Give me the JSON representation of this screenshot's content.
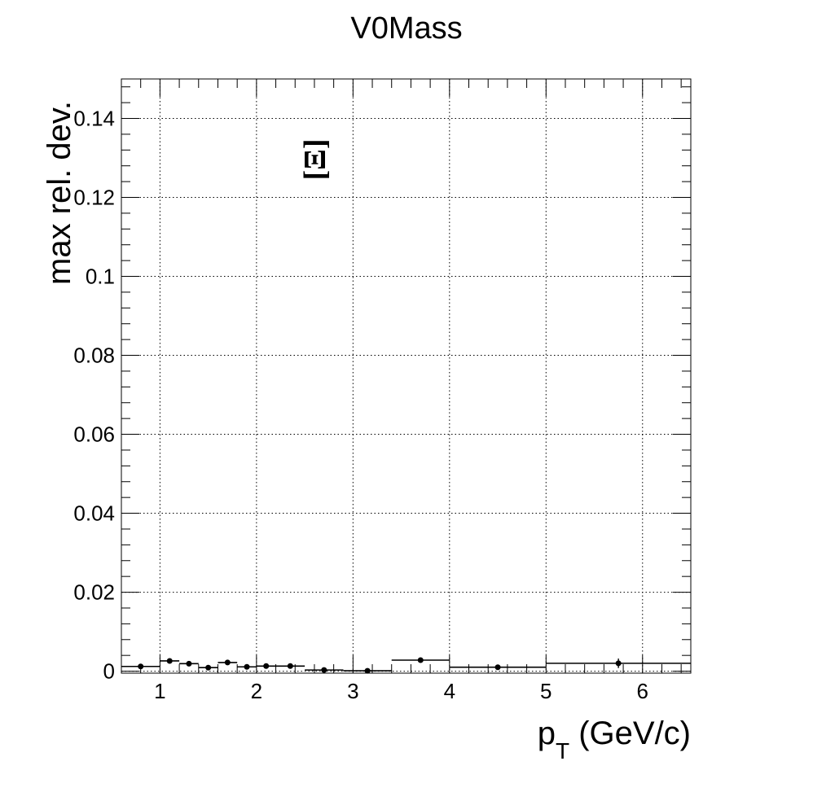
{
  "chart_data": {
    "type": "scatter",
    "title": "V0Mass",
    "xlabel_main": "p",
    "xlabel_sub": "T",
    "xlabel_rest": " (GeV/c)",
    "ylabel": "max rel. dev.",
    "annotation": "[Ξ]",
    "xlim": [
      0.6,
      6.5
    ],
    "ylim": [
      -0.0005,
      0.15
    ],
    "x_ticks": [
      1,
      2,
      3,
      4,
      5,
      6
    ],
    "x_tick_labels": [
      "1",
      "2",
      "3",
      "4",
      "5",
      "6"
    ],
    "y_ticks": [
      0,
      0.02,
      0.04,
      0.06,
      0.08,
      0.1,
      0.12,
      0.14
    ],
    "y_tick_labels": [
      "0",
      "0.02",
      "0.04",
      "0.06",
      "0.08",
      "0.1",
      "0.12",
      "0.14"
    ],
    "grid": true,
    "series": [
      {
        "x_low": [
          0.6,
          1.0,
          1.2,
          1.4,
          1.6,
          1.8,
          2.0,
          2.2,
          2.5,
          2.9,
          3.4,
          4.0,
          5.0
        ],
        "x_high": [
          1.0,
          1.2,
          1.4,
          1.6,
          1.8,
          2.0,
          2.2,
          2.5,
          2.9,
          3.4,
          4.0,
          5.0,
          6.5
        ],
        "x": [
          0.8,
          1.1,
          1.3,
          1.5,
          1.7,
          1.9,
          2.1,
          2.35,
          2.7,
          3.15,
          3.7,
          4.5,
          5.75
        ],
        "y": [
          0.0012,
          0.0026,
          0.0019,
          0.0009,
          0.0022,
          0.0011,
          0.0013,
          0.0013,
          0.0003,
          0.0001,
          0.0028,
          0.001,
          0.002
        ],
        "y_err": [
          0,
          0,
          0,
          0,
          0,
          0,
          0,
          0,
          0,
          0,
          0,
          0,
          0.0012
        ]
      }
    ]
  }
}
